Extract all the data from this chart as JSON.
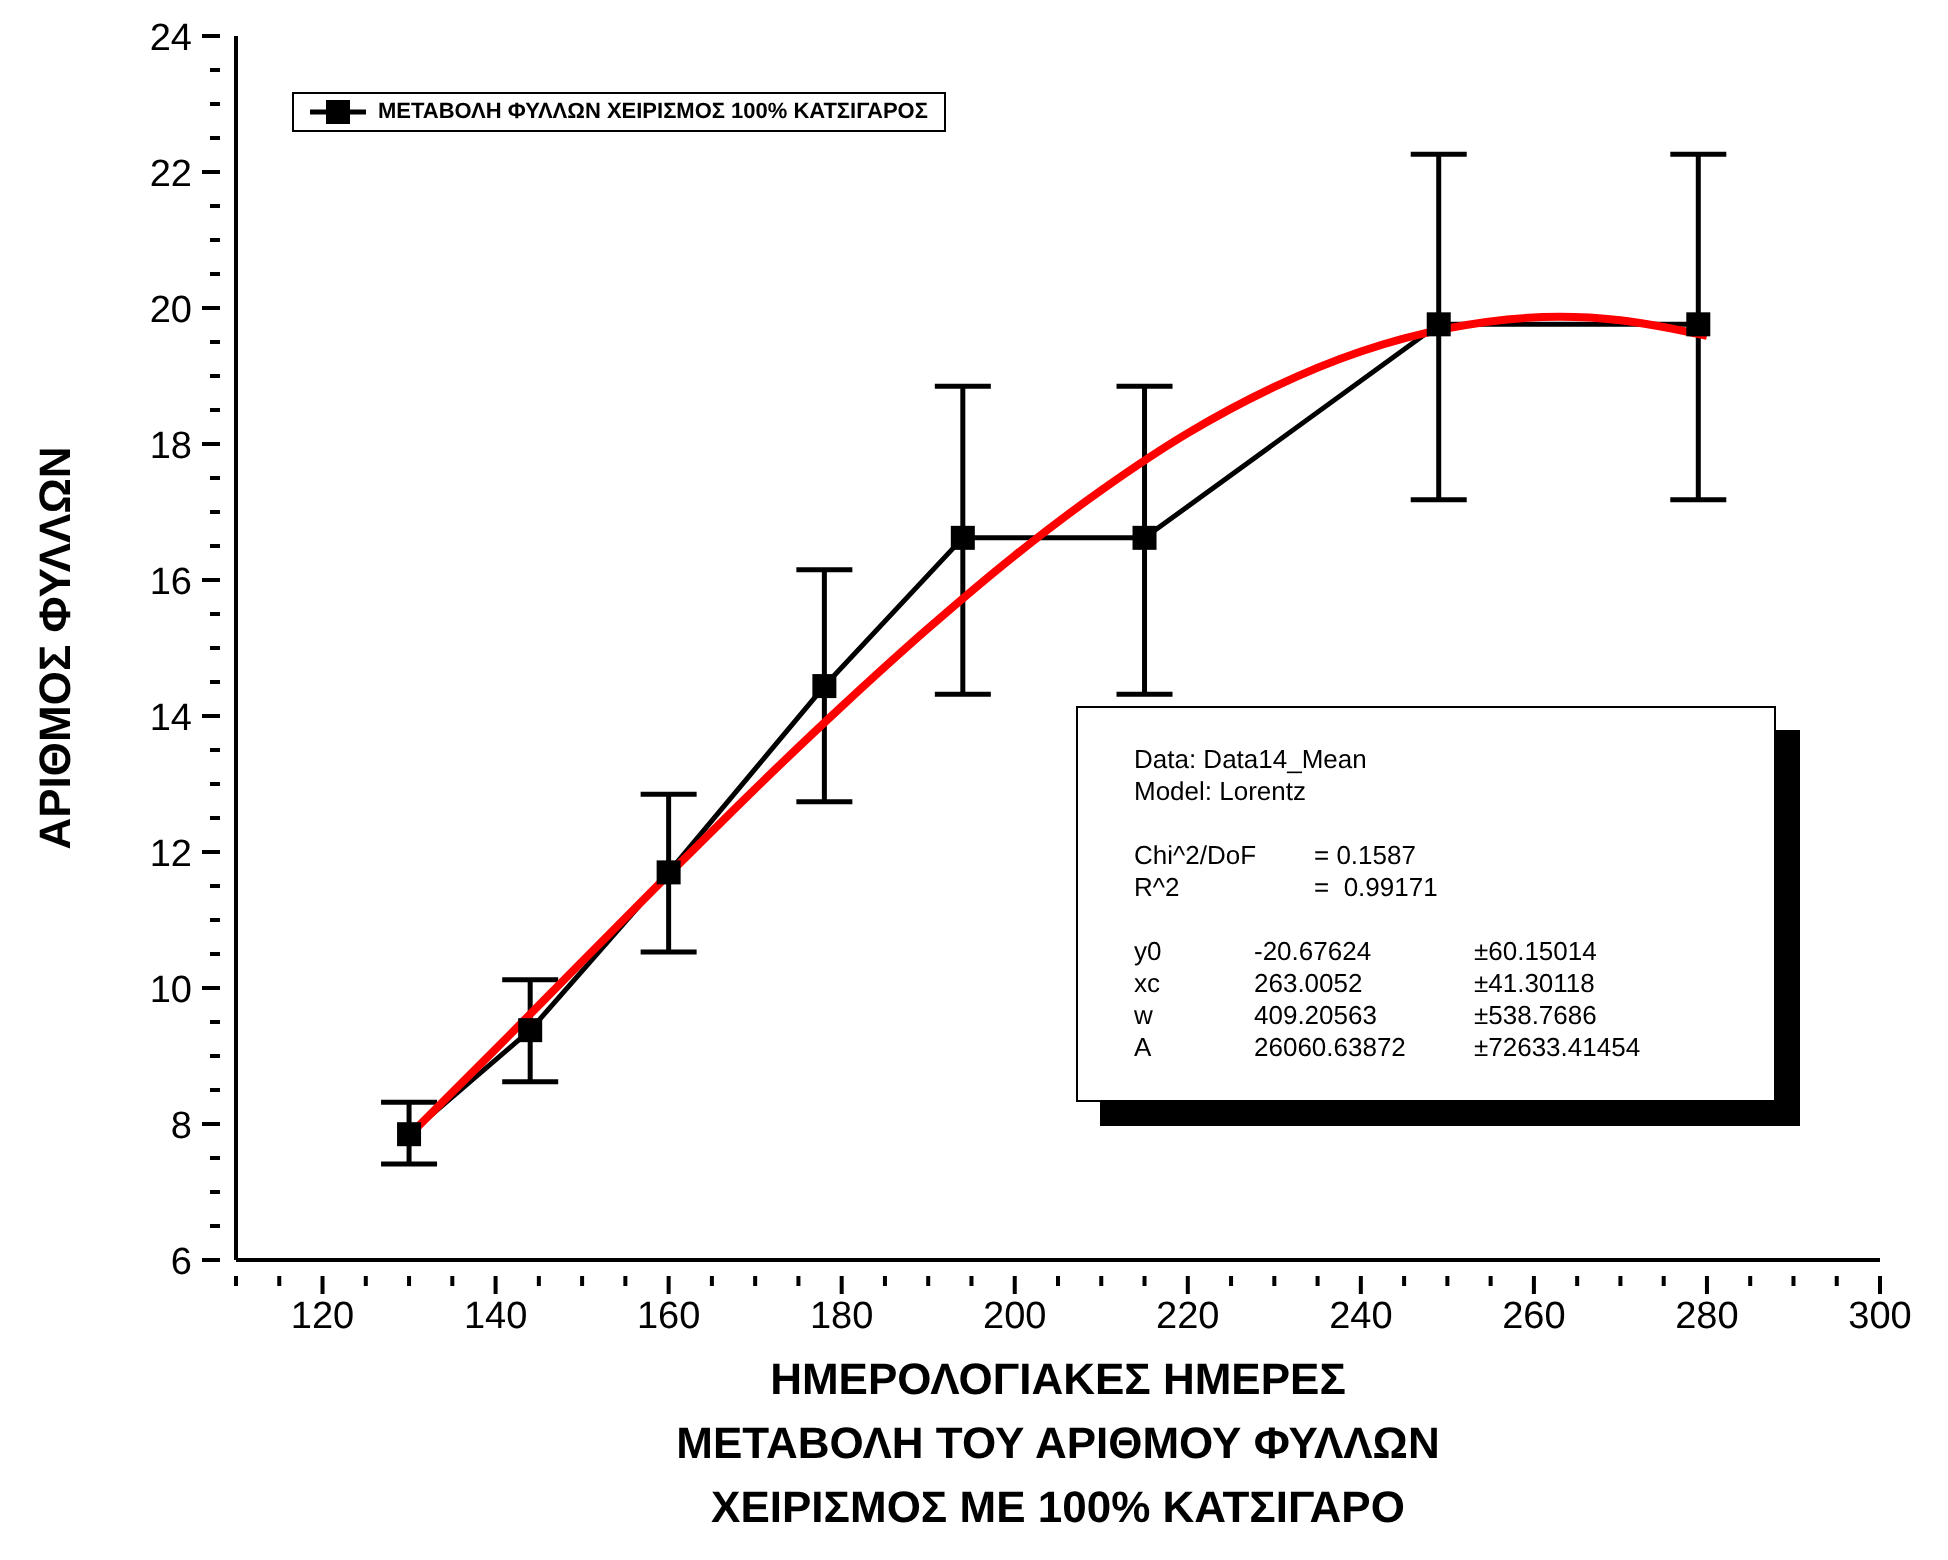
{
  "chart_data": {
    "type": "line",
    "xlabel": "ΗΜΕΡΟΛΟΓΙΑΚΕΣ ΗΜΕΡΕΣ\nΜΕΤΑΒΟΛΗ ΤΟΥ ΑΡΙΘΜΟΥ ΦΥΛΛΩΝ\nΧΕΙΡΙΣΜΟΣ ΜΕ 100% ΚΑΤΣΙΓΑΡΟ",
    "ylabel": "ΑΡΙΘΜΟΣ ΦΥΛΛΩΝ",
    "xlim": [
      110,
      300
    ],
    "xticks": [
      {
        "value": 110,
        "label": null
      },
      {
        "value": 115,
        "label": null
      },
      120,
      {
        "value": 125,
        "label": null
      },
      {
        "value": 130,
        "label": null
      },
      {
        "value": 135,
        "label": null
      },
      140,
      {
        "value": 145,
        "label": null
      },
      {
        "value": 150,
        "label": null
      },
      {
        "value": 155,
        "label": null
      },
      160,
      {
        "value": 165,
        "label": null
      },
      {
        "value": 170,
        "label": null
      },
      {
        "value": 175,
        "label": null
      },
      180,
      {
        "value": 185,
        "label": null
      },
      {
        "value": 190,
        "label": null
      },
      {
        "value": 195,
        "label": null
      },
      200,
      {
        "value": 205,
        "label": null
      },
      {
        "value": 210,
        "label": null
      },
      {
        "value": 215,
        "label": null
      },
      220,
      {
        "value": 225,
        "label": null
      },
      {
        "value": 230,
        "label": null
      },
      {
        "value": 235,
        "label": null
      },
      240,
      {
        "value": 245,
        "label": null
      },
      {
        "value": 250,
        "label": null
      },
      {
        "value": 255,
        "label": null
      },
      260,
      {
        "value": 265,
        "label": null
      },
      {
        "value": 270,
        "label": null
      },
      {
        "value": 275,
        "label": null
      },
      280,
      {
        "value": 285,
        "label": null
      },
      {
        "value": 290,
        "label": null
      },
      {
        "value": 295,
        "label": null
      },
      300
    ],
    "ylim": [
      6,
      24
    ],
    "yticks": [
      6,
      {
        "value": 6.5,
        "label": null
      },
      {
        "value": 7,
        "label": null
      },
      {
        "value": 7.5,
        "label": null
      },
      8,
      {
        "value": 8.5,
        "label": null
      },
      {
        "value": 9,
        "label": null
      },
      {
        "value": 9.5,
        "label": null
      },
      10,
      {
        "value": 10.5,
        "label": null
      },
      {
        "value": 11,
        "label": null
      },
      {
        "value": 11.5,
        "label": null
      },
      12,
      {
        "value": 12.5,
        "label": null
      },
      {
        "value": 13,
        "label": null
      },
      {
        "value": 13.5,
        "label": null
      },
      14,
      {
        "value": 14.5,
        "label": null
      },
      {
        "value": 15,
        "label": null
      },
      {
        "value": 15.5,
        "label": null
      },
      16,
      {
        "value": 16.5,
        "label": null
      },
      {
        "value": 17,
        "label": null
      },
      {
        "value": 17.5,
        "label": null
      },
      18,
      {
        "value": 18.5,
        "label": null
      },
      {
        "value": 19,
        "label": null
      },
      {
        "value": 19.5,
        "label": null
      },
      20,
      {
        "value": 20.5,
        "label": null
      },
      {
        "value": 21,
        "label": null
      },
      {
        "value": 21.5,
        "label": null
      },
      22,
      {
        "value": 22.5,
        "label": null
      },
      {
        "value": 23,
        "label": null
      },
      {
        "value": 23.5,
        "label": null
      },
      24
    ],
    "legend": "top left",
    "series": [
      {
        "name": "ΜΕΤΑΒΟΛΗ ΦΥΛΛΩΝ ΧΕΙΡΙΣΜΟΣ 100% ΚΑΤΣΙΓΑΡΟΣ",
        "color": "#000000",
        "marker": "square",
        "x": [
          130,
          144,
          160,
          178,
          194,
          215,
          249,
          279
        ],
        "values": [
          7.85,
          9.38,
          11.7,
          14.44,
          16.62,
          16.62,
          19.76,
          19.76
        ],
        "errors": [
          [
            7.41,
            8.32
          ],
          [
            8.62,
            10.12
          ],
          [
            10.53,
            12.85
          ],
          [
            12.74,
            16.15
          ],
          [
            14.32,
            18.85
          ],
          [
            14.32,
            18.85
          ],
          [
            17.18,
            22.26
          ],
          [
            17.18,
            22.26
          ]
        ]
      },
      {
        "color": "#ff0000",
        "marker": "none",
        "x": [
          130,
          140,
          150,
          160,
          170,
          180,
          190,
          200,
          210,
          220,
          230,
          240,
          250,
          263,
          270,
          280
        ],
        "values": [
          7.83,
          9.1,
          10.39,
          11.67,
          12.93,
          14.14,
          15.29,
          16.36,
          17.32,
          18.16,
          18.84,
          19.36,
          19.7,
          19.87,
          19.82,
          19.59
        ]
      }
    ],
    "annotations": [
      "Data: Data14_Mean",
      "Model: Lorentz",
      "Chi^2/DoF\t= 0.1587",
      "R^2\t=  0.99171",
      "y0\t-20.67624\t±60.15014",
      "xc\t263.0052\t±41.30118",
      "w\t409.20563\t±538.7686",
      "A\t26060.63872\t±72633.41454"
    ]
  }
}
